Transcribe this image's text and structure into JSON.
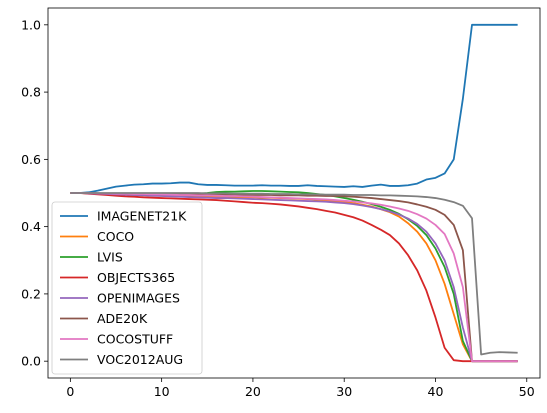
{
  "chart_data": {
    "type": "line",
    "title": "",
    "xlabel": "",
    "ylabel": "",
    "xlim": [
      -2.45,
      51.45
    ],
    "ylim": [
      -0.05,
      1.05
    ],
    "xticks": [
      0,
      10,
      20,
      30,
      40,
      50
    ],
    "yticks": [
      0.0,
      0.2,
      0.4,
      0.6,
      0.8,
      1.0
    ],
    "xtick_labels": [
      "0",
      "10",
      "20",
      "30",
      "40",
      "50"
    ],
    "ytick_labels": [
      "0.0",
      "0.2",
      "0.4",
      "0.6",
      "0.8",
      "1.0"
    ],
    "grid": false,
    "legend_position": "lower left",
    "x": [
      0,
      1,
      2,
      3,
      4,
      5,
      6,
      7,
      8,
      9,
      10,
      11,
      12,
      13,
      14,
      15,
      16,
      17,
      18,
      19,
      20,
      21,
      22,
      23,
      24,
      25,
      26,
      27,
      28,
      29,
      30,
      31,
      32,
      33,
      34,
      35,
      36,
      37,
      38,
      39,
      40,
      41,
      42,
      43,
      44,
      45,
      46,
      47,
      48,
      49
    ],
    "series": [
      {
        "name": "IMAGENET21K",
        "color": "#1f77b4",
        "values": [
          0.5,
          0.5,
          0.502,
          0.507,
          0.513,
          0.519,
          0.522,
          0.525,
          0.526,
          0.528,
          0.528,
          0.529,
          0.531,
          0.531,
          0.526,
          0.524,
          0.524,
          0.523,
          0.522,
          0.522,
          0.522,
          0.523,
          0.522,
          0.522,
          0.521,
          0.521,
          0.523,
          0.521,
          0.52,
          0.519,
          0.518,
          0.52,
          0.518,
          0.522,
          0.525,
          0.521,
          0.521,
          0.523,
          0.528,
          0.54,
          0.545,
          0.558,
          0.6,
          0.78,
          1.0,
          1.0,
          1.0,
          1.0,
          1.0,
          1.0
        ]
      },
      {
        "name": "COCO",
        "color": "#ff7f0e",
        "values": [
          0.5,
          0.5,
          0.499,
          0.498,
          0.497,
          0.496,
          0.495,
          0.494,
          0.493,
          0.492,
          0.492,
          0.491,
          0.49,
          0.49,
          0.49,
          0.489,
          0.489,
          0.488,
          0.488,
          0.487,
          0.487,
          0.486,
          0.486,
          0.485,
          0.484,
          0.483,
          0.482,
          0.48,
          0.478,
          0.476,
          0.473,
          0.47,
          0.465,
          0.46,
          0.452,
          0.443,
          0.43,
          0.41,
          0.385,
          0.35,
          0.3,
          0.23,
          0.14,
          0.05,
          0.0,
          0.0,
          0.0,
          0.0,
          0.0,
          0.0
        ]
      },
      {
        "name": "LVIS",
        "color": "#2ca02c",
        "values": [
          0.5,
          0.5,
          0.5,
          0.499,
          0.498,
          0.497,
          0.496,
          0.496,
          0.496,
          0.497,
          0.497,
          0.497,
          0.497,
          0.497,
          0.498,
          0.5,
          0.503,
          0.504,
          0.504,
          0.505,
          0.506,
          0.506,
          0.505,
          0.504,
          0.503,
          0.502,
          0.5,
          0.497,
          0.494,
          0.49,
          0.485,
          0.48,
          0.474,
          0.467,
          0.459,
          0.45,
          0.438,
          0.422,
          0.402,
          0.375,
          0.335,
          0.28,
          0.2,
          0.06,
          0.0,
          0.0,
          0.0,
          0.0,
          0.0,
          0.0
        ]
      },
      {
        "name": "OBJECTS365",
        "color": "#d62728",
        "values": [
          0.5,
          0.5,
          0.498,
          0.496,
          0.494,
          0.492,
          0.49,
          0.489,
          0.487,
          0.486,
          0.485,
          0.484,
          0.483,
          0.482,
          0.481,
          0.48,
          0.479,
          0.477,
          0.475,
          0.473,
          0.471,
          0.47,
          0.468,
          0.466,
          0.463,
          0.46,
          0.456,
          0.452,
          0.447,
          0.442,
          0.435,
          0.428,
          0.418,
          0.405,
          0.391,
          0.375,
          0.35,
          0.315,
          0.27,
          0.21,
          0.13,
          0.04,
          0.003,
          0.0,
          0.0,
          0.0,
          0.0,
          0.0,
          0.0,
          0.0
        ]
      },
      {
        "name": "OPENIMAGES",
        "color": "#9467bd",
        "values": [
          0.5,
          0.5,
          0.499,
          0.498,
          0.497,
          0.496,
          0.495,
          0.494,
          0.493,
          0.492,
          0.491,
          0.49,
          0.489,
          0.488,
          0.487,
          0.486,
          0.485,
          0.485,
          0.484,
          0.483,
          0.482,
          0.481,
          0.48,
          0.479,
          0.478,
          0.477,
          0.476,
          0.475,
          0.474,
          0.472,
          0.47,
          0.467,
          0.463,
          0.458,
          0.452,
          0.445,
          0.436,
          0.424,
          0.408,
          0.385,
          0.35,
          0.3,
          0.22,
          0.1,
          0.0,
          0.0,
          0.0,
          0.0,
          0.0,
          0.0
        ]
      },
      {
        "name": "ADE20K",
        "color": "#8c564b",
        "values": [
          0.5,
          0.5,
          0.5,
          0.499,
          0.499,
          0.499,
          0.498,
          0.498,
          0.498,
          0.497,
          0.497,
          0.497,
          0.496,
          0.496,
          0.496,
          0.495,
          0.495,
          0.495,
          0.495,
          0.494,
          0.494,
          0.494,
          0.494,
          0.493,
          0.493,
          0.493,
          0.492,
          0.492,
          0.491,
          0.491,
          0.49,
          0.489,
          0.487,
          0.485,
          0.482,
          0.479,
          0.476,
          0.472,
          0.466,
          0.459,
          0.45,
          0.435,
          0.405,
          0.33,
          0.0,
          0.0,
          0.0,
          0.0,
          0.0,
          0.0
        ]
      },
      {
        "name": "COCOSTUFF",
        "color": "#e377c2",
        "values": [
          0.5,
          0.5,
          0.5,
          0.499,
          0.499,
          0.498,
          0.498,
          0.497,
          0.497,
          0.496,
          0.496,
          0.495,
          0.494,
          0.494,
          0.493,
          0.493,
          0.492,
          0.491,
          0.491,
          0.49,
          0.489,
          0.488,
          0.487,
          0.486,
          0.485,
          0.484,
          0.483,
          0.482,
          0.481,
          0.479,
          0.477,
          0.475,
          0.472,
          0.469,
          0.465,
          0.46,
          0.454,
          0.447,
          0.437,
          0.424,
          0.405,
          0.378,
          0.32,
          0.22,
          0.0,
          0.0,
          0.0,
          0.0,
          0.0,
          0.0
        ]
      },
      {
        "name": "VOC2012AUG",
        "color": "#7f7f7f",
        "values": [
          0.5,
          0.5,
          0.5,
          0.5,
          0.5,
          0.5,
          0.5,
          0.5,
          0.5,
          0.5,
          0.5,
          0.5,
          0.5,
          0.5,
          0.5,
          0.499,
          0.499,
          0.499,
          0.498,
          0.498,
          0.498,
          0.498,
          0.497,
          0.497,
          0.497,
          0.496,
          0.496,
          0.496,
          0.495,
          0.495,
          0.495,
          0.494,
          0.494,
          0.494,
          0.493,
          0.493,
          0.492,
          0.491,
          0.49,
          0.488,
          0.485,
          0.48,
          0.473,
          0.462,
          0.425,
          0.02,
          0.025,
          0.027,
          0.026,
          0.025
        ]
      }
    ]
  }
}
